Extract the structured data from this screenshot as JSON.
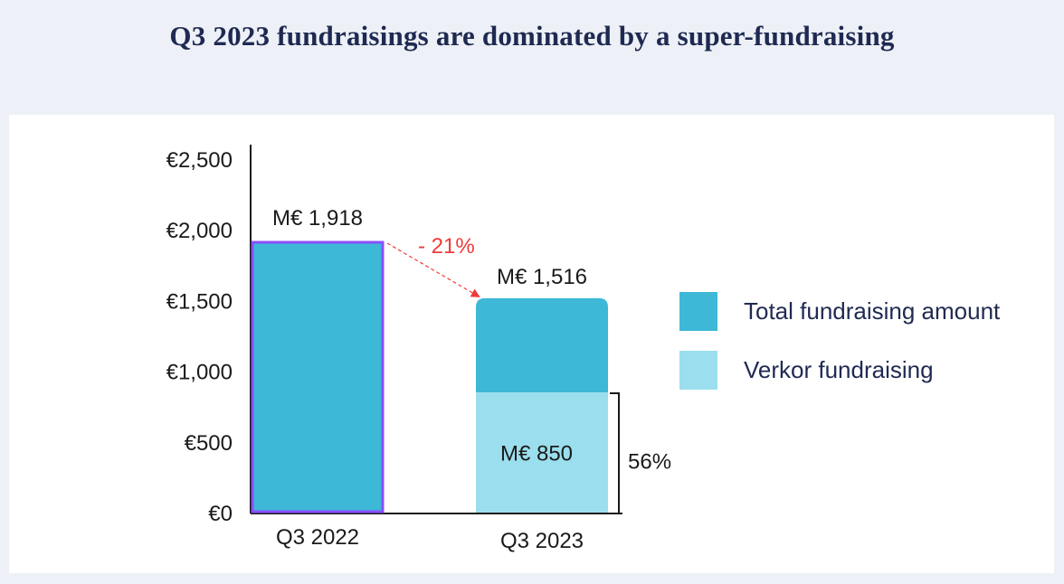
{
  "title": "Q3 2023 fundraisings are dominated by a super-fundraising",
  "chart_data": {
    "type": "bar",
    "categories": [
      "Q3 2022",
      "Q3 2023"
    ],
    "series": [
      {
        "name": "Total fundraising amount",
        "values": [
          1918,
          1516
        ],
        "color": "#3db8d6"
      },
      {
        "name": "Verkor fundraising",
        "values": [
          null,
          850
        ],
        "color": "#9bdfee"
      }
    ],
    "ylim": [
      0,
      2500
    ],
    "yticks": [
      0,
      500,
      1000,
      1500,
      2000,
      2500
    ],
    "ytick_labels": [
      "€0",
      "€500",
      "€1,000",
      "€1,500",
      "€2,000",
      "€2,500"
    ],
    "data_labels": {
      "total": [
        "M€ 1,918",
        "M€ 1,516"
      ],
      "verkor": "M€ 850"
    },
    "annotations": {
      "change": "- 21%",
      "share": "56%"
    },
    "highlight_color": "#8a4fff",
    "legend_position": "right",
    "grid": false
  }
}
